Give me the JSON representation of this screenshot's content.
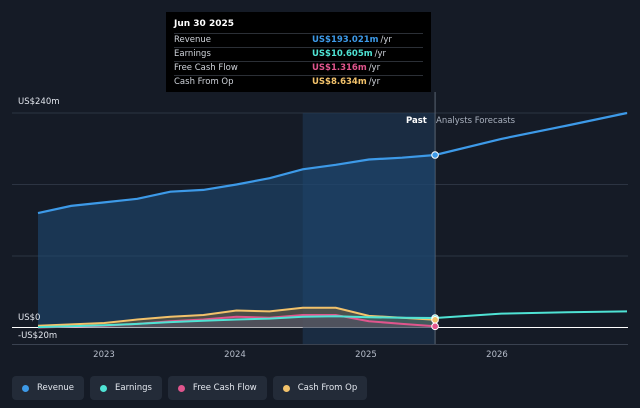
{
  "chart_data": {
    "type": "area",
    "ylim": [
      -20,
      240
    ],
    "x_ticks": [
      2023,
      2024,
      2025,
      2026
    ],
    "ytick_labels": {
      "top": "US$240m",
      "zero": "US$0",
      "bottom": "-US$20m"
    },
    "past_label": "Past",
    "forecast_label": "Analysts Forecasts",
    "divider_x": 2025.5,
    "series": [
      {
        "name": "Revenue",
        "color": "#3d9ae8",
        "x": [
          2022.5,
          2022.75,
          2023.0,
          2023.25,
          2023.5,
          2023.75,
          2024.0,
          2024.25,
          2024.5,
          2024.75,
          2025.0,
          2025.25,
          2025.5
        ],
        "values": [
          128,
          136,
          140,
          144,
          152,
          154,
          160,
          167,
          177,
          182,
          188,
          190,
          193
        ],
        "forecast_x": [
          2025.5,
          2026.0,
          2026.5,
          2026.95
        ],
        "forecast_values": [
          193,
          211,
          226,
          240
        ]
      },
      {
        "name": "Earnings",
        "color": "#4fe3d4",
        "x": [
          2022.5,
          2022.75,
          2023.0,
          2023.25,
          2023.5,
          2023.75,
          2024.0,
          2024.25,
          2024.5,
          2024.75,
          2025.0,
          2025.25,
          2025.5
        ],
        "values": [
          0.5,
          1.5,
          2.5,
          4,
          6,
          7.5,
          9,
          10,
          12,
          12.5,
          11.5,
          10.8,
          10.6
        ],
        "forecast_x": [
          2025.5,
          2026.0,
          2026.5,
          2026.95
        ],
        "forecast_values": [
          10.6,
          15.5,
          17,
          18
        ]
      },
      {
        "name": "Free Cash Flow",
        "color": "#e0558d",
        "x": [
          2022.5,
          2022.75,
          2023.0,
          2023.25,
          2023.5,
          2023.75,
          2024.0,
          2024.25,
          2024.5,
          2024.75,
          2025.0,
          2025.25,
          2025.5
        ],
        "values": [
          0,
          1,
          2,
          4,
          7,
          9,
          12,
          11,
          14,
          14,
          7,
          4,
          1.3
        ]
      },
      {
        "name": "Cash From Op",
        "color": "#f2c26b",
        "x": [
          2022.5,
          2022.75,
          2023.0,
          2023.25,
          2023.5,
          2023.75,
          2024.0,
          2024.25,
          2024.5,
          2024.75,
          2025.0,
          2025.25,
          2025.5
        ],
        "values": [
          2,
          3.5,
          5,
          9,
          12,
          14,
          19,
          18,
          22,
          22,
          13,
          11,
          8.6
        ]
      }
    ]
  },
  "tooltip": {
    "date": "Jun 30 2025",
    "unit": "/yr",
    "rows": [
      {
        "name": "Revenue",
        "value": "US$193.021m",
        "color": "#3d9ae8"
      },
      {
        "name": "Earnings",
        "value": "US$10.605m",
        "color": "#4fe3d4"
      },
      {
        "name": "Free Cash Flow",
        "value": "US$1.316m",
        "color": "#e0558d"
      },
      {
        "name": "Cash From Op",
        "value": "US$8.634m",
        "color": "#f2c26b"
      }
    ]
  },
  "legend": [
    {
      "label": "Revenue",
      "color": "#3d9ae8"
    },
    {
      "label": "Earnings",
      "color": "#4fe3d4"
    },
    {
      "label": "Free Cash Flow",
      "color": "#e0558d"
    },
    {
      "label": "Cash From Op",
      "color": "#f2c26b"
    }
  ]
}
